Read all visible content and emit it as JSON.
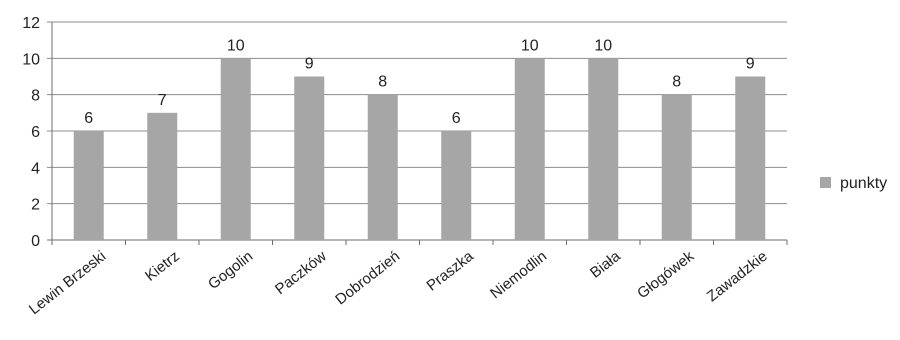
{
  "chart_data": {
    "type": "bar",
    "categories": [
      "Lewin Brzeski",
      "Kietrz",
      "Gogolin",
      "Paczków",
      "Dobrodzień",
      "Praszka",
      "Niemodlin",
      "Biała",
      "Głogówek",
      "Zawadzkie"
    ],
    "series": [
      {
        "name": "punkty",
        "values": [
          6,
          7,
          10,
          9,
          8,
          6,
          10,
          10,
          8,
          9
        ],
        "color": "#a6a6a6"
      }
    ],
    "ylim": [
      0,
      12
    ],
    "yticks": [
      0,
      2,
      4,
      6,
      8,
      10,
      12
    ],
    "grid": true,
    "legend": "right",
    "data_labels": true
  }
}
